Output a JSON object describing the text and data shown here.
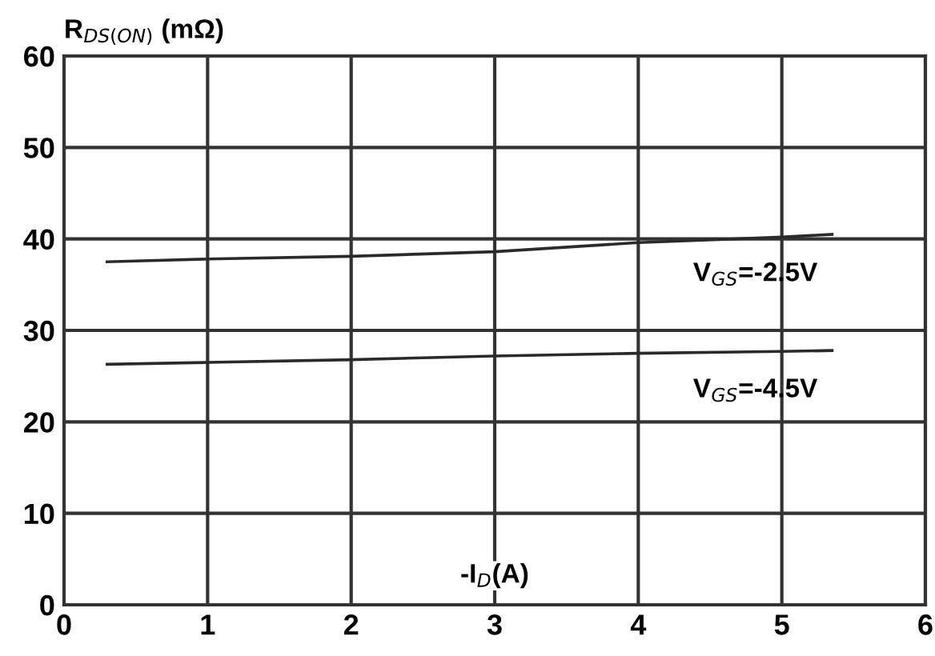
{
  "chart_data": {
    "type": "line",
    "ylabel": "R$_{DS(ON)}$ (mΩ)",
    "xlabel": "-I$_{D}$(A)",
    "xlim": [
      0,
      6
    ],
    "xticks": [
      0,
      1,
      2,
      3,
      4,
      5,
      6
    ],
    "ylim": [
      0,
      60
    ],
    "yticks": [
      0,
      10,
      20,
      30,
      40,
      50,
      60
    ],
    "grid": true,
    "legend": false,
    "marker": "none",
    "line_style": "solid",
    "series": [
      {
        "name": "V$_{GS}$=-2.5V",
        "color": "#2a2a2a",
        "x": [
          0.3,
          1,
          2,
          3,
          4,
          5,
          5.35
        ],
        "values": [
          37.5,
          37.8,
          38.1,
          38.6,
          39.6,
          40.2,
          40.5
        ]
      },
      {
        "name": "V$_{GS}$=-4.5V",
        "color": "#2a2a2a",
        "x": [
          0.3,
          1,
          2,
          3,
          4,
          5,
          5.35
        ],
        "values": [
          26.3,
          26.5,
          26.8,
          27.2,
          27.5,
          27.7,
          27.8
        ]
      }
    ]
  }
}
